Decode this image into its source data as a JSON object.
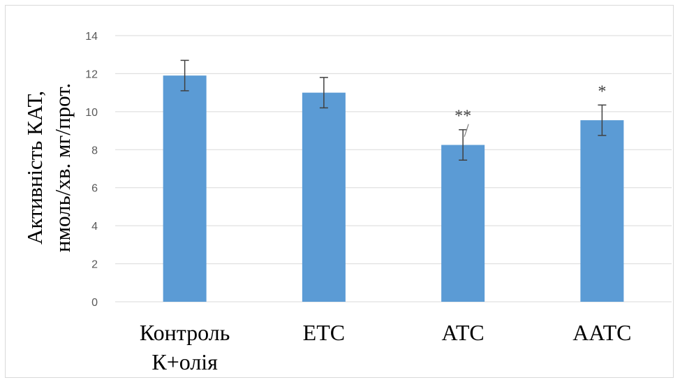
{
  "chart_data": {
    "type": "bar",
    "categories": [
      [
        "Контроль",
        "К+олія"
      ],
      [
        "ЕТС"
      ],
      [
        "АТС"
      ],
      [
        "ААТС"
      ]
    ],
    "values": [
      11.9,
      11.0,
      8.25,
      9.55
    ],
    "errors": [
      0.8,
      0.8,
      0.8,
      0.8
    ],
    "annotations": [
      "",
      "",
      "**",
      "*"
    ],
    "ylabel_lines": [
      "Активність КАТ,",
      "нмоль/хв. мг/прот."
    ],
    "xlabel": "",
    "ylim": [
      0,
      14
    ],
    "yticks": [
      0,
      2,
      4,
      6,
      8,
      10,
      12,
      14
    ],
    "grid": true,
    "bar_color": "#5b9bd5",
    "grid_color": "#d9d9d9",
    "error_color": "#404040"
  }
}
